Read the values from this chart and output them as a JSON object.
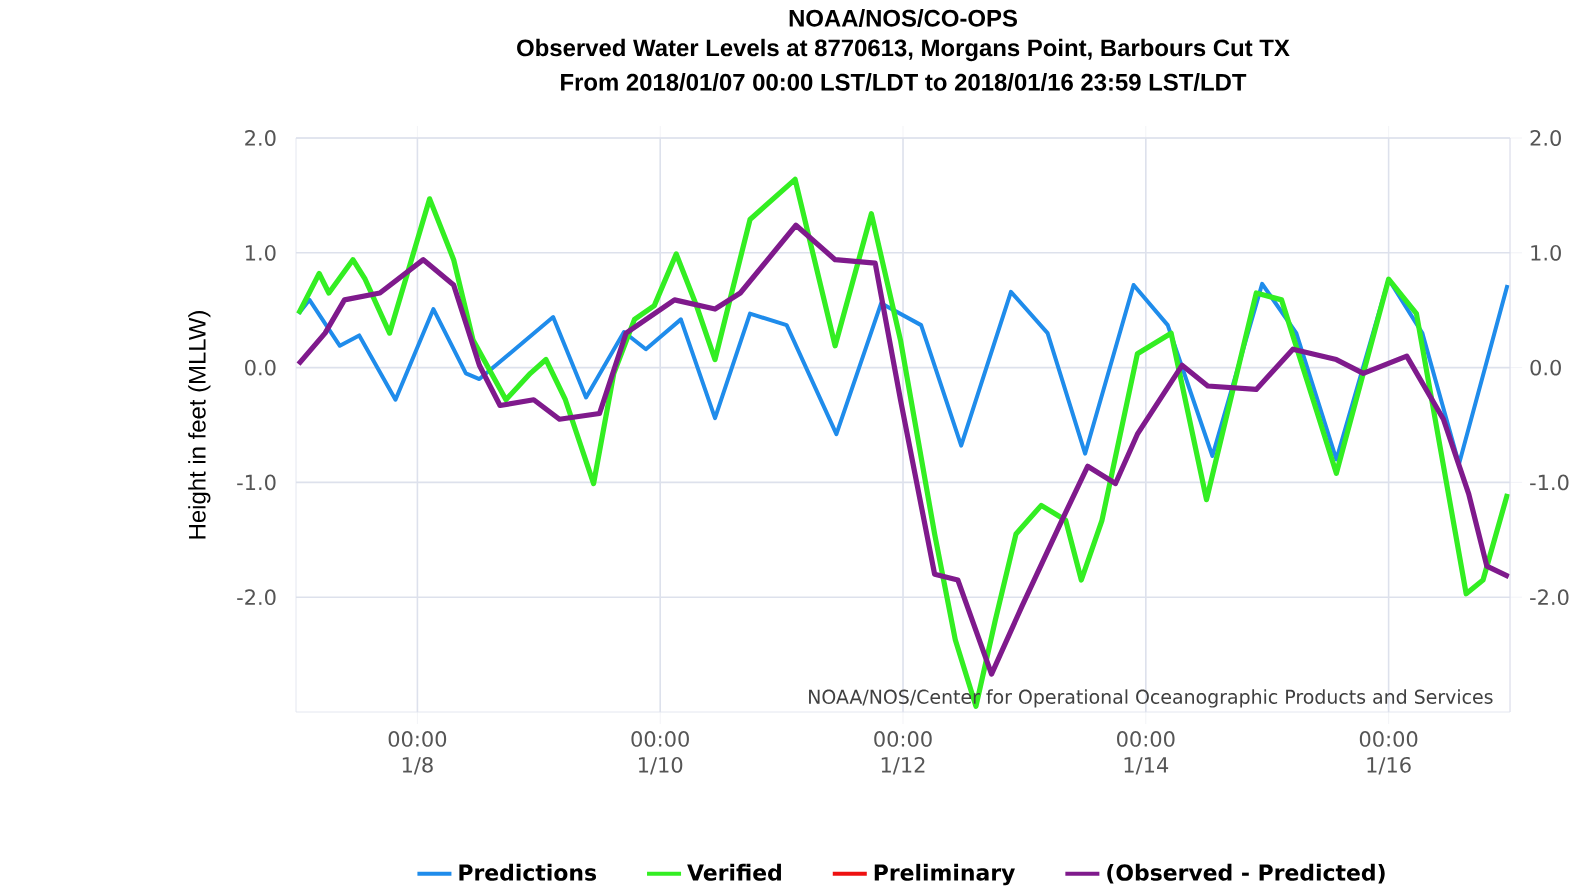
{
  "chart_data": {
    "type": "line",
    "title": "NOAA/NOS/CO-OPS",
    "subtitle": "Observed Water Levels at 8770613, Morgans Point, Barbours Cut TX",
    "annotations": [
      "From 2018/01/07 00:00 LST/LDT to 2018/01/16 23:59 LST/LDT",
      "NOAA/NOS/Center for Operational Oceanographic Products and Services"
    ],
    "ylabel": "Height in feet (MLLW)",
    "xlim": [
      "2018-01-07T00:00",
      "2018-01-17T00:00"
    ],
    "xticks": [
      {
        "value": "2018-01-08T00:00",
        "label": "00:00 1/8"
      },
      {
        "value": "2018-01-10T00:00",
        "label": "00:00 1/10"
      },
      {
        "value": "2018-01-12T00:00",
        "label": "00:00 1/12"
      },
      {
        "value": "2018-01-14T00:00",
        "label": "00:00 1/14"
      },
      {
        "value": "2018-01-16T00:00",
        "label": "00:00 1/16"
      }
    ],
    "ylim": [
      -3,
      2
    ],
    "yticks": [
      {
        "value": -2,
        "label": "-2.0"
      },
      {
        "value": -1,
        "label": "-1.0"
      },
      {
        "value": 0,
        "label": "0.0"
      },
      {
        "value": 1,
        "label": "1.0"
      },
      {
        "value": 2,
        "label": "2.0"
      }
    ],
    "y2lim": [
      -3,
      2
    ],
    "y2ticks": [
      {
        "value": -2,
        "label": "-2.0"
      },
      {
        "value": -1,
        "label": "-1.0"
      },
      {
        "value": 0,
        "label": "0.0"
      },
      {
        "value": 1,
        "label": "1.0"
      },
      {
        "value": 2,
        "label": "2.0"
      }
    ],
    "grid": true,
    "legend": "bottom",
    "marker": "none",
    "line_style": "solid",
    "series": [
      {
        "name": "Predictions",
        "color": "#1f8ceb",
        "x": [
          "2018-01-07T00:30",
          "2018-01-07T02:40",
          "2018-01-07T08:40",
          "2018-01-07T12:30",
          "2018-01-07T19:40",
          "2018-01-08T03:10",
          "2018-01-08T09:35",
          "2018-01-08T12:15",
          "2018-01-09T02:50",
          "2018-01-09T09:20",
          "2018-01-09T16:50",
          "2018-01-09T21:10",
          "2018-01-10T04:05",
          "2018-01-10T10:50",
          "2018-01-10T17:45",
          "2018-01-11T01:00",
          "2018-01-11T10:50",
          "2018-01-11T19:40",
          "2018-01-12T03:35",
          "2018-01-12T11:30",
          "2018-01-12T21:20",
          "2018-01-13T04:35",
          "2018-01-13T12:00",
          "2018-01-13T21:35",
          "2018-01-14T04:20",
          "2018-01-14T13:10",
          "2018-01-14T23:00",
          "2018-01-15T05:45",
          "2018-01-15T13:40",
          "2018-01-16T00:00",
          "2018-01-16T06:40",
          "2018-01-16T13:55",
          "2018-01-16T23:30"
        ],
        "values": [
          0.47,
          0.59,
          0.19,
          0.28,
          -0.28,
          0.51,
          -0.05,
          -0.1,
          0.44,
          -0.26,
          0.31,
          0.16,
          0.42,
          -0.44,
          0.47,
          0.37,
          -0.58,
          0.56,
          0.37,
          -0.68,
          0.66,
          0.3,
          -0.75,
          0.72,
          0.37,
          -0.77,
          0.73,
          0.3,
          -0.8,
          0.77,
          0.3,
          -0.84,
          0.72
        ]
      },
      {
        "name": "Verified",
        "color": "#33ee22",
        "x": [
          "2018-01-07T00:30",
          "2018-01-07T04:35",
          "2018-01-07T06:30",
          "2018-01-07T11:15",
          "2018-01-07T13:40",
          "2018-01-07T18:30",
          "2018-01-08T02:25",
          "2018-01-08T07:10",
          "2018-01-08T11:00",
          "2018-01-08T17:30",
          "2018-01-08T22:20",
          "2018-01-09T01:25",
          "2018-01-09T05:15",
          "2018-01-09T10:50",
          "2018-01-09T14:50",
          "2018-01-09T18:55",
          "2018-01-09T22:50",
          "2018-01-10T03:10",
          "2018-01-10T07:10",
          "2018-01-10T10:50",
          "2018-01-10T17:45",
          "2018-01-11T02:40",
          "2018-01-11T10:35",
          "2018-01-11T17:45",
          "2018-01-11T23:30",
          "2018-01-12T06:15",
          "2018-01-12T10:20",
          "2018-01-12T14:25",
          "2018-01-12T18:15",
          "2018-01-12T22:20",
          "2018-01-13T03:20",
          "2018-01-13T08:10",
          "2018-01-13T11:15",
          "2018-01-13T15:20",
          "2018-01-13T22:20",
          "2018-01-14T05:00",
          "2018-01-14T12:00",
          "2018-01-14T13:55",
          "2018-01-14T21:50",
          "2018-01-15T02:50",
          "2018-01-15T13:40",
          "2018-01-16T00:00",
          "2018-01-16T05:30",
          "2018-01-16T15:20",
          "2018-01-16T18:40",
          "2018-01-16T23:30"
        ],
        "values": [
          0.47,
          0.82,
          0.65,
          0.94,
          0.77,
          0.3,
          1.47,
          0.94,
          0.24,
          -0.28,
          -0.05,
          0.07,
          -0.28,
          -1.01,
          -0.05,
          0.42,
          0.54,
          0.99,
          0.54,
          0.07,
          1.29,
          1.64,
          0.19,
          1.34,
          0.24,
          -1.45,
          -2.37,
          -2.95,
          -2.2,
          -1.45,
          -1.2,
          -1.33,
          -1.85,
          -1.33,
          0.12,
          0.3,
          -1.15,
          -0.8,
          0.65,
          0.59,
          -0.92,
          0.77,
          0.47,
          -1.97,
          -1.85,
          -1.1
        ]
      },
      {
        "name": "Preliminary",
        "color": "#ee1111"
      },
      {
        "name": "(Observed - Predicted)",
        "color": "#7f1a8c",
        "x": [
          "2018-01-07T00:30",
          "2018-01-07T05:45",
          "2018-01-07T09:35",
          "2018-01-07T16:35",
          "2018-01-08T01:10",
          "2018-01-08T07:10",
          "2018-01-08T12:15",
          "2018-01-08T16:20",
          "2018-01-08T23:00",
          "2018-01-09T04:05",
          "2018-01-09T12:00",
          "2018-01-09T17:15",
          "2018-01-10T02:50",
          "2018-01-10T10:50",
          "2018-01-10T15:50",
          "2018-01-11T02:50",
          "2018-01-11T10:35",
          "2018-01-11T18:30",
          "2018-01-11T23:30",
          "2018-01-12T06:15",
          "2018-01-12T10:50",
          "2018-01-12T17:30",
          "2018-01-12T23:30",
          "2018-01-13T07:25",
          "2018-01-13T12:30",
          "2018-01-13T18:00",
          "2018-01-13T22:20",
          "2018-01-14T07:10",
          "2018-01-14T12:15",
          "2018-01-14T21:50",
          "2018-01-15T05:05",
          "2018-01-15T13:40",
          "2018-01-15T19:00",
          "2018-01-16T03:35",
          "2018-01-16T10:50",
          "2018-01-16T15:50",
          "2018-01-16T19:25",
          "2018-01-16T23:45"
        ],
        "values": [
          0.03,
          0.3,
          0.59,
          0.65,
          0.94,
          0.72,
          0.02,
          -0.33,
          -0.28,
          -0.45,
          -0.4,
          0.3,
          0.59,
          0.51,
          0.65,
          1.24,
          0.94,
          0.91,
          -0.28,
          -1.8,
          -1.85,
          -2.67,
          -2.08,
          -1.33,
          -0.86,
          -1.01,
          -0.58,
          0.02,
          -0.16,
          -0.19,
          0.16,
          0.07,
          -0.05,
          0.1,
          -0.45,
          -1.1,
          -1.73,
          -1.82
        ]
      }
    ]
  }
}
